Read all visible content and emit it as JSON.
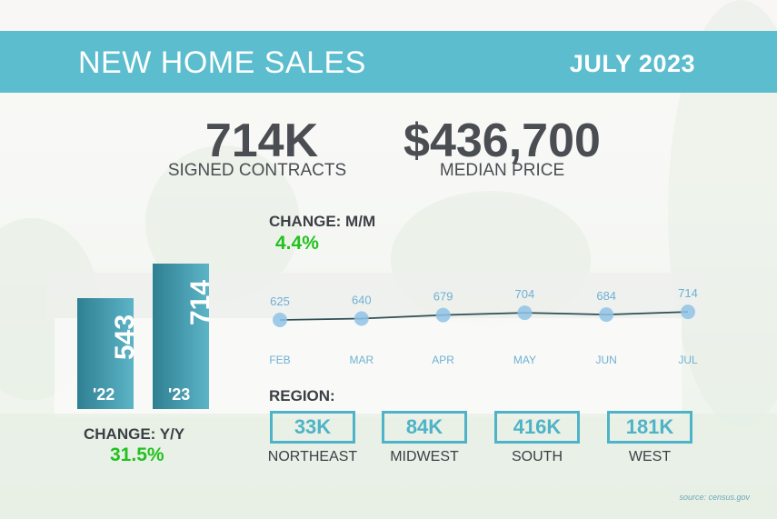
{
  "header": {
    "title": "NEW HOME SALES",
    "date": "JULY 2023"
  },
  "summary": {
    "contracts": {
      "value": "714K",
      "label": "SIGNED CONTRACTS"
    },
    "price": {
      "value": "$436,700",
      "label": "MEDIAN PRICE"
    }
  },
  "change_mm": {
    "label": "CHANGE: M/M",
    "value": "4.4%"
  },
  "change_yy": {
    "label": "CHANGE: Y/Y",
    "value": "31.5%"
  },
  "region": {
    "label": "REGION:",
    "items": [
      {
        "name": "NORTHEAST",
        "value": "33K"
      },
      {
        "name": "MIDWEST",
        "value": "84K"
      },
      {
        "name": "SOUTH",
        "value": "416K"
      },
      {
        "name": "WEST",
        "value": "181K"
      }
    ]
  },
  "source": "source: census.gov",
  "colors": {
    "accent": "#5bbdce",
    "green": "#22c11e",
    "text": "#4a4d52",
    "point": "#8fc3e6",
    "line": "#2f4f55"
  },
  "chart_data": [
    {
      "type": "bar",
      "categories": [
        "'22",
        "'23"
      ],
      "values": [
        543,
        714
      ],
      "ylim": [
        0,
        714
      ]
    },
    {
      "type": "line",
      "categories": [
        "FEB",
        "MAR",
        "APR",
        "MAY",
        "JUN",
        "JUL"
      ],
      "values": [
        625,
        640,
        679,
        704,
        684,
        714
      ],
      "ylim": [
        600,
        730
      ]
    }
  ]
}
